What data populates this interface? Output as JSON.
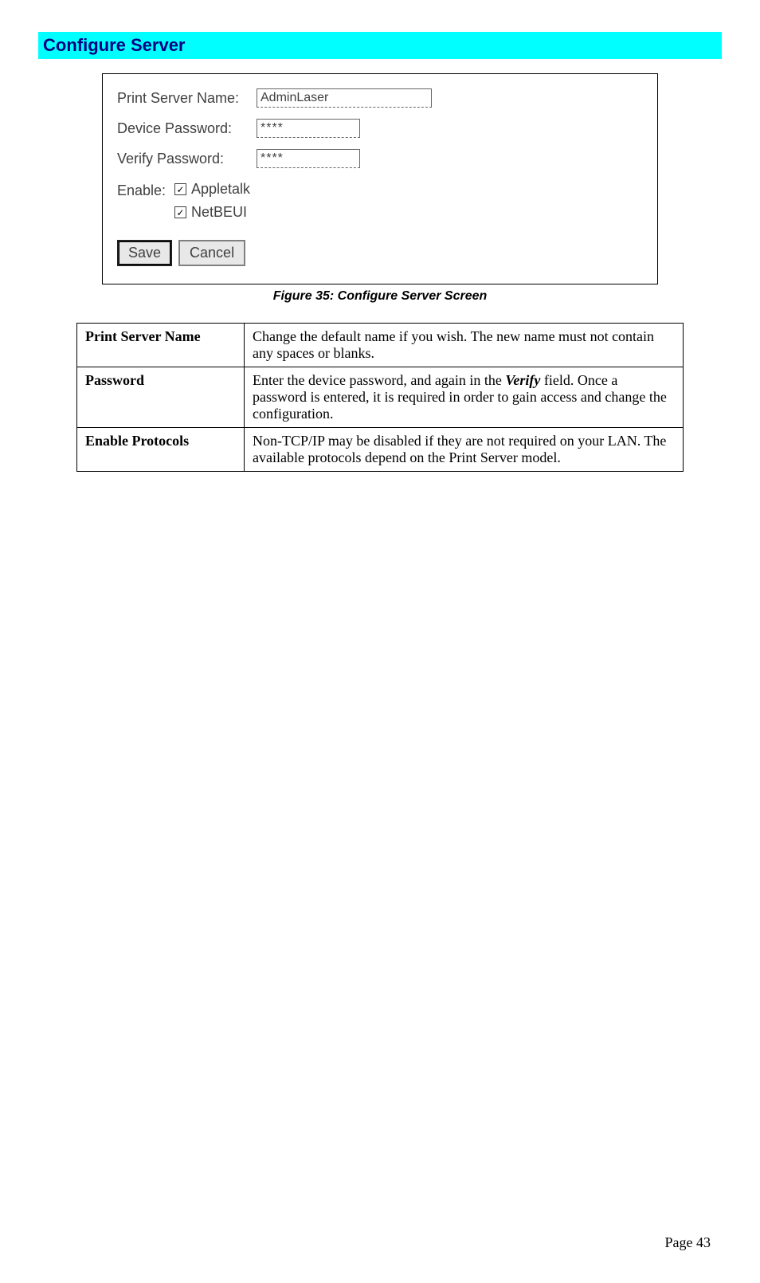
{
  "section_title": "Configure Server",
  "form": {
    "print_server_name_label": "Print Server Name:",
    "print_server_name_value": "AdminLaser",
    "device_password_label": "Device Password:",
    "device_password_value": "****",
    "verify_password_label": "Verify Password:",
    "verify_password_value": "****",
    "enable_label": "Enable:",
    "option_appletalk": "Appletalk",
    "option_netbeui": "NetBEUI",
    "appletalk_checked": "✓",
    "netbeui_checked": "✓",
    "save_label": "Save",
    "cancel_label": "Cancel"
  },
  "figure_caption": "Figure 35: Configure Server Screen",
  "table": {
    "rows": [
      {
        "header": "Print Server Name",
        "body_pre": "Change the default name if you wish. The new name must not contain any spaces or blanks."
      },
      {
        "header": "Password",
        "body_pre": "Enter the device password, and again in the ",
        "verify_word": "Verify",
        "body_post": " field. Once a password is entered, it is required in order to gain access and change the configuration."
      },
      {
        "header": "Enable Protocols",
        "body_pre": "Non-TCP/IP may be disabled if they are not required on your LAN. The available protocols depend on the Print Server model."
      }
    ]
  },
  "page_number": "Page 43",
  "colors": {
    "header_bg": "#00ffff",
    "header_fg": "#000080",
    "border": "#000000"
  }
}
